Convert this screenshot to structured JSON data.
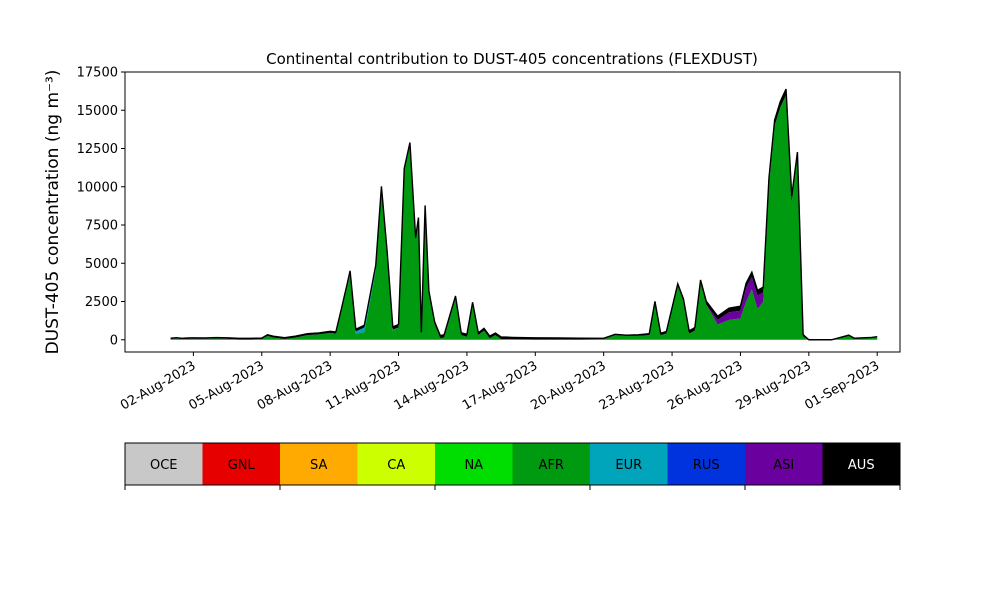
{
  "chart_data": {
    "type": "area",
    "title": "Continental contribution to DUST-405 concentrations (FLEXDUST)",
    "ylabel": "DUST-405 concentration (ng m⁻³)",
    "xlabel": "",
    "ylim": [
      -800,
      17500
    ],
    "xlim": [
      "2023-07-30",
      "2023-09-02"
    ],
    "y_ticks": [
      0,
      2500,
      5000,
      7500,
      10000,
      12500,
      15000,
      17500
    ],
    "x_ticks": [
      {
        "date": "2023-08-02",
        "label": "02-Aug-2023"
      },
      {
        "date": "2023-08-05",
        "label": "05-Aug-2023"
      },
      {
        "date": "2023-08-08",
        "label": "08-Aug-2023"
      },
      {
        "date": "2023-08-11",
        "label": "11-Aug-2023"
      },
      {
        "date": "2023-08-14",
        "label": "14-Aug-2023"
      },
      {
        "date": "2023-08-17",
        "label": "17-Aug-2023"
      },
      {
        "date": "2023-08-20",
        "label": "20-Aug-2023"
      },
      {
        "date": "2023-08-23",
        "label": "23-Aug-2023"
      },
      {
        "date": "2023-08-26",
        "label": "26-Aug-2023"
      },
      {
        "date": "2023-08-29",
        "label": "29-Aug-2023"
      },
      {
        "date": "2023-09-01",
        "label": "01-Sep-2023"
      }
    ],
    "legend_placement": "below",
    "legend": [
      {
        "label": "OCE",
        "color": "#c8c8c8",
        "text_color": "#000000"
      },
      {
        "label": "GNL",
        "color": "#e60000",
        "text_color": "#000000"
      },
      {
        "label": "SA",
        "color": "#ffaa00",
        "text_color": "#000000"
      },
      {
        "label": "CA",
        "color": "#ccff00",
        "text_color": "#000000"
      },
      {
        "label": "NA",
        "color": "#00dd00",
        "text_color": "#000000"
      },
      {
        "label": "AFR",
        "color": "#009a10",
        "text_color": "#000000"
      },
      {
        "label": "EUR",
        "color": "#00a5bb",
        "text_color": "#000000"
      },
      {
        "label": "RUS",
        "color": "#0033dd",
        "text_color": "#000000"
      },
      {
        "label": "ASI",
        "color": "#6a009e",
        "text_color": "#000000"
      },
      {
        "label": "AUS",
        "color": "#000000",
        "text_color": "#ffffff"
      }
    ],
    "series": [
      {
        "name": "AFR",
        "color": "#009a10",
        "points": [
          [
            "2023-08-01 00:00",
            50
          ],
          [
            "2023-08-01 06:00",
            80
          ],
          [
            "2023-08-01 12:00",
            40
          ],
          [
            "2023-08-01 18:00",
            60
          ],
          [
            "2023-08-02 00:00",
            70
          ],
          [
            "2023-08-02 12:00",
            60
          ],
          [
            "2023-08-03 00:00",
            80
          ],
          [
            "2023-08-03 12:00",
            60
          ],
          [
            "2023-08-04 00:00",
            20
          ],
          [
            "2023-08-04 12:00",
            20
          ],
          [
            "2023-08-05 00:00",
            30
          ],
          [
            "2023-08-05 06:00",
            250
          ],
          [
            "2023-08-05 12:00",
            150
          ],
          [
            "2023-08-06 00:00",
            50
          ],
          [
            "2023-08-06 12:00",
            150
          ],
          [
            "2023-08-07 00:00",
            300
          ],
          [
            "2023-08-07 12:00",
            350
          ],
          [
            "2023-08-08 00:00",
            450
          ],
          [
            "2023-08-08 06:00",
            400
          ],
          [
            "2023-08-08 18:00",
            3500
          ],
          [
            "2023-08-08 21:00",
            4300
          ],
          [
            "2023-08-09 03:00",
            400
          ],
          [
            "2023-08-09 12:00",
            500
          ],
          [
            "2023-08-10 00:00",
            4500
          ],
          [
            "2023-08-10 06:00",
            9700
          ],
          [
            "2023-08-10 12:00",
            5500
          ],
          [
            "2023-08-10 18:00",
            600
          ],
          [
            "2023-08-11 00:00",
            800
          ],
          [
            "2023-08-11 06:00",
            11000
          ],
          [
            "2023-08-11 12:00",
            12700
          ],
          [
            "2023-08-11 18:00",
            6500
          ],
          [
            "2023-08-11 21:00",
            7800
          ],
          [
            "2023-08-12 00:00",
            300
          ],
          [
            "2023-08-12 04:00",
            8600
          ],
          [
            "2023-08-12 08:00",
            3000
          ],
          [
            "2023-08-12 14:00",
            1000
          ],
          [
            "2023-08-12 20:00",
            100
          ],
          [
            "2023-08-13 00:00",
            150
          ],
          [
            "2023-08-13 12:00",
            2700
          ],
          [
            "2023-08-13 18:00",
            300
          ],
          [
            "2023-08-14 00:00",
            200
          ],
          [
            "2023-08-14 06:00",
            2300
          ],
          [
            "2023-08-14 12:00",
            300
          ],
          [
            "2023-08-14 18:00",
            600
          ],
          [
            "2023-08-15 00:00",
            100
          ],
          [
            "2023-08-15 06:00",
            300
          ],
          [
            "2023-08-15 12:00",
            50
          ],
          [
            "2023-08-16 00:00",
            30
          ],
          [
            "2023-08-17 00:00",
            20
          ],
          [
            "2023-08-18 00:00",
            20
          ],
          [
            "2023-08-19 00:00",
            20
          ],
          [
            "2023-08-20 00:00",
            30
          ],
          [
            "2023-08-20 12:00",
            300
          ],
          [
            "2023-08-21 00:00",
            250
          ],
          [
            "2023-08-21 12:00",
            250
          ],
          [
            "2023-08-22 00:00",
            300
          ],
          [
            "2023-08-22 06:00",
            2400
          ],
          [
            "2023-08-22 12:00",
            300
          ],
          [
            "2023-08-22 18:00",
            400
          ],
          [
            "2023-08-23 06:00",
            3500
          ],
          [
            "2023-08-23 12:00",
            2500
          ],
          [
            "2023-08-23 18:00",
            400
          ],
          [
            "2023-08-24 00:00",
            600
          ],
          [
            "2023-08-24 06:00",
            3700
          ],
          [
            "2023-08-24 12:00",
            2300
          ],
          [
            "2023-08-25 00:00",
            1000
          ],
          [
            "2023-08-25 12:00",
            1300
          ],
          [
            "2023-08-26 00:00",
            1400
          ],
          [
            "2023-08-26 06:00",
            2500
          ],
          [
            "2023-08-26 12:00",
            3300
          ],
          [
            "2023-08-26 18:00",
            2000
          ],
          [
            "2023-08-27 00:00",
            2500
          ],
          [
            "2023-08-27 06:00",
            10000
          ],
          [
            "2023-08-27 12:00",
            14000
          ],
          [
            "2023-08-27 18:00",
            15200
          ],
          [
            "2023-08-28 00:00",
            16000
          ],
          [
            "2023-08-28 06:00",
            9000
          ],
          [
            "2023-08-28 12:00",
            12000
          ],
          [
            "2023-08-28 18:00",
            200
          ],
          [
            "2023-08-29 00:00",
            0
          ],
          [
            "2023-08-30 00:00",
            0
          ],
          [
            "2023-08-30 18:00",
            300
          ],
          [
            "2023-08-31 00:00",
            100
          ],
          [
            "2023-08-31 18:00",
            150
          ],
          [
            "2023-09-01 00:00",
            200
          ]
        ]
      },
      {
        "name": "ASI",
        "color": "#6a009e",
        "points": [
          [
            "2023-08-24 12:00",
            0
          ],
          [
            "2023-08-25 00:00",
            300
          ],
          [
            "2023-08-25 12:00",
            500
          ],
          [
            "2023-08-26 00:00",
            500
          ],
          [
            "2023-08-26 06:00",
            900
          ],
          [
            "2023-08-26 12:00",
            800
          ],
          [
            "2023-08-26 18:00",
            900
          ],
          [
            "2023-08-27 00:00",
            600
          ],
          [
            "2023-08-27 06:00",
            200
          ],
          [
            "2023-08-27 12:00",
            0
          ]
        ]
      },
      {
        "name": "EUR",
        "color": "#00a5bb",
        "points": [
          [
            "2023-08-08 12:00",
            0
          ],
          [
            "2023-08-09 00:00",
            100
          ],
          [
            "2023-08-09 12:00",
            300
          ],
          [
            "2023-08-10 00:00",
            200
          ],
          [
            "2023-08-10 12:00",
            100
          ],
          [
            "2023-08-11 00:00",
            0
          ]
        ]
      },
      {
        "name": "AUS",
        "color": "#000000",
        "points": [
          [
            "2023-08-01 00:00",
            50
          ],
          [
            "2023-08-08 00:00",
            100
          ],
          [
            "2023-08-11 00:00",
            200
          ],
          [
            "2023-08-21 00:00",
            50
          ],
          [
            "2023-08-28 06:00",
            400
          ],
          [
            "2023-08-29 00:00",
            0
          ]
        ]
      }
    ]
  }
}
